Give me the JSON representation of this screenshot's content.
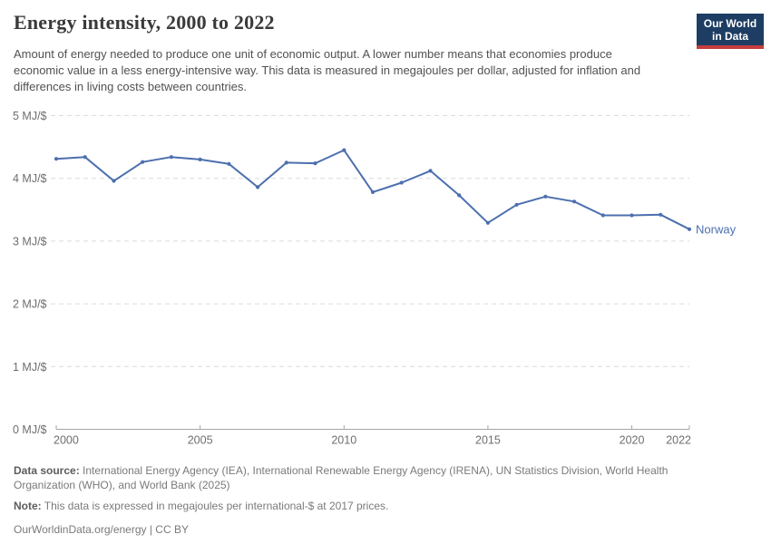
{
  "header": {
    "title": "Energy intensity, 2000 to 2022",
    "subtitle": "Amount of energy needed to produce one unit of economic output. A lower number means that economies produce economic value in a less energy-intensive way. This data is measured in megajoules per dollar, adjusted for inflation and differences in living costs between countries."
  },
  "logo": {
    "line1": "Our World",
    "line2": "in Data",
    "bg_color": "#1d3d63",
    "bar_color": "#c53d3d"
  },
  "chart_data": {
    "type": "line",
    "title": "Energy intensity, 2000 to 2022",
    "unit": "MJ/$",
    "x": [
      2000,
      2001,
      2002,
      2003,
      2004,
      2005,
      2006,
      2007,
      2008,
      2009,
      2010,
      2011,
      2012,
      2013,
      2014,
      2015,
      2016,
      2017,
      2018,
      2019,
      2020,
      2021,
      2022
    ],
    "series": [
      {
        "name": "Norway",
        "color": "#4c6fae",
        "values": [
          4.31,
          4.34,
          3.96,
          4.26,
          4.34,
          4.3,
          4.23,
          3.86,
          4.25,
          4.24,
          4.45,
          3.78,
          3.93,
          4.12,
          3.73,
          3.29,
          3.58,
          3.71,
          3.63,
          3.41,
          3.41,
          3.42,
          3.19
        ]
      }
    ],
    "ylim": [
      0,
      5
    ],
    "yticks": [
      0,
      1,
      2,
      3,
      4,
      5
    ],
    "ytick_labels": [
      "0 MJ/$",
      "1 MJ/$",
      "2 MJ/$",
      "3 MJ/$",
      "4 MJ/$",
      "5 MJ/$"
    ],
    "xticks": [
      2000,
      2005,
      2010,
      2015,
      2020,
      2022
    ],
    "xtick_labels": [
      "2000",
      "2005",
      "2010",
      "2015",
      "2020",
      "2022"
    ],
    "grid": "horizontal-dashed",
    "legend_position": "end-of-line-label",
    "colors": {
      "gridline": "#dcdcdc",
      "axis": "#a6a6a6",
      "tick_text": "#6e6e6e"
    }
  },
  "footer": {
    "data_source_label": "Data source:",
    "data_source_text": "International Energy Agency (IEA), International Renewable Energy Agency (IRENA), UN Statistics Division, World Health Organization (WHO), and World Bank (2025)",
    "note_label": "Note:",
    "note_text": "This data is expressed in megajoules per international-$ at 2017 prices.",
    "citation": "OurWorldinData.org/energy | CC BY"
  }
}
